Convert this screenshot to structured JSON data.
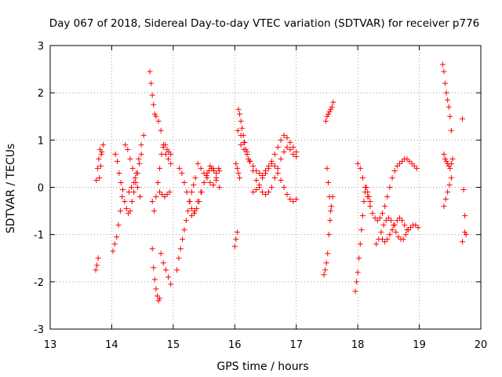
{
  "chart_data": {
    "type": "scatter",
    "title": "Day 067 of 2018, Sidereal Day-to-day VTEC variation (SDTVAR) for receiver p776",
    "xlabel": "GPS time / hours",
    "ylabel": "SDTVAR / TECUs",
    "xlim": [
      13,
      20
    ],
    "ylim": [
      -3,
      3
    ],
    "xticks": [
      "13",
      "14",
      "15",
      "16",
      "17",
      "18",
      "19",
      "20"
    ],
    "yticks": [
      "-3",
      "-2",
      "-1",
      "0",
      "1",
      "2",
      "3"
    ],
    "grid": true,
    "marker": "plus",
    "marker_color": "#ff0000",
    "series": [
      {
        "name": "SDTVAR",
        "x": [
          13.74,
          13.76,
          13.78,
          13.8,
          13.82,
          13.84,
          13.86,
          13.75,
          13.77,
          13.79,
          13.81,
          13.83,
          14.02,
          14.05,
          14.08,
          14.11,
          14.14,
          14.17,
          14.06,
          14.09,
          14.12,
          14.15,
          14.18,
          14.21,
          14.24,
          14.27,
          14.3,
          14.33,
          14.36,
          14.39,
          14.42,
          14.45,
          14.48,
          14.22,
          14.26,
          14.3,
          14.34,
          14.38,
          14.42,
          14.46,
          14.28,
          14.32,
          14.36,
          14.4,
          14.44,
          14.48,
          14.52,
          14.62,
          14.64,
          14.66,
          14.68,
          14.7,
          14.66,
          14.68,
          14.7,
          14.72,
          14.74,
          14.76,
          14.78,
          14.72,
          14.76,
          14.8,
          14.84,
          14.88,
          14.92,
          14.96,
          14.66,
          14.69,
          14.72,
          14.75,
          14.78,
          14.81,
          14.84,
          14.87,
          14.9,
          14.93,
          14.96,
          14.78,
          14.82,
          14.86,
          14.9,
          14.94,
          14.8,
          14.84,
          14.88,
          14.92,
          14.96,
          15.06,
          15.09,
          15.12,
          15.15,
          15.18,
          15.21,
          15.24,
          15.27,
          15.3,
          15.33,
          15.36,
          15.1,
          15.14,
          15.18,
          15.22,
          15.26,
          15.3,
          15.34,
          15.38,
          15.42,
          15.46,
          15.5,
          15.54,
          15.58,
          15.62,
          15.66,
          15.7,
          15.74,
          15.3,
          15.35,
          15.4,
          15.45,
          15.5,
          15.55,
          15.6,
          15.65,
          15.7,
          15.75,
          15.4,
          15.45,
          15.5,
          15.55,
          15.6,
          15.65,
          15.7,
          15.75,
          16.0,
          16.02,
          16.04,
          16.06,
          16.08,
          16.1,
          16.12,
          16.14,
          16.16,
          16.18,
          16.2,
          16.22,
          16.24,
          16.05,
          16.1,
          16.15,
          16.2,
          16.25,
          16.3,
          16.35,
          16.4,
          16.45,
          16.5,
          16.55,
          16.6,
          16.65,
          16.7,
          16.75,
          16.8,
          16.85,
          16.9,
          16.95,
          17.0,
          16.1,
          16.15,
          16.2,
          16.25,
          16.3,
          16.35,
          16.4,
          16.45,
          16.5,
          16.55,
          16.6,
          16.65,
          16.7,
          16.75,
          16.8,
          16.85,
          16.9,
          16.95,
          17.0,
          16.3,
          16.35,
          16.4,
          16.45,
          16.5,
          16.55,
          16.6,
          16.65,
          16.7,
          16.75,
          16.8,
          16.85,
          16.9,
          16.95,
          17.0,
          16.02,
          16.04,
          16.06,
          16.08,
          17.45,
          17.47,
          17.49,
          17.51,
          17.53,
          17.55,
          17.57,
          17.59,
          17.48,
          17.5,
          17.52,
          17.54,
          17.56,
          17.58,
          17.6,
          17.5,
          17.52,
          17.54,
          17.56,
          17.96,
          17.98,
          18.0,
          18.02,
          18.04,
          18.06,
          18.08,
          18.1,
          18.12,
          18.14,
          18.16,
          18.18,
          18.2,
          18.0,
          18.04,
          18.08,
          18.12,
          18.16,
          18.2,
          18.24,
          18.28,
          18.32,
          18.36,
          18.4,
          18.44,
          18.48,
          18.52,
          18.56,
          18.6,
          18.64,
          18.68,
          18.72,
          18.76,
          18.8,
          18.84,
          18.88,
          18.92,
          18.96,
          18.3,
          18.34,
          18.38,
          18.42,
          18.46,
          18.5,
          18.54,
          18.58,
          18.62,
          18.66,
          18.7,
          18.74,
          18.78,
          18.82,
          18.86,
          18.9,
          18.94,
          18.98,
          18.4,
          18.44,
          18.48,
          18.52,
          18.56,
          18.6,
          18.64,
          18.68,
          18.72,
          18.76,
          18.8,
          19.38,
          19.4,
          19.42,
          19.44,
          19.46,
          19.48,
          19.5,
          19.52,
          19.4,
          19.42,
          19.44,
          19.46,
          19.48,
          19.5,
          19.52,
          19.54,
          19.4,
          19.43,
          19.46,
          19.49,
          19.52,
          19.7,
          19.72,
          19.74,
          19.76,
          19.7,
          19.74
        ],
        "y": [
          -1.75,
          -1.65,
          -1.5,
          0.2,
          0.45,
          0.75,
          0.9,
          0.15,
          0.4,
          0.6,
          0.8,
          0.7,
          -1.35,
          -1.2,
          -1.05,
          -0.8,
          -0.5,
          -0.2,
          0.7,
          0.55,
          0.3,
          0.1,
          -0.05,
          -0.3,
          -0.45,
          -0.55,
          -0.5,
          -0.3,
          -0.1,
          0.1,
          0.3,
          0.5,
          0.7,
          0.9,
          0.8,
          0.6,
          0.4,
          0.2,
          0.0,
          -0.2,
          -0.1,
          0.0,
          0.1,
          0.3,
          0.6,
          0.9,
          1.1,
          2.45,
          2.2,
          1.95,
          1.75,
          1.55,
          -1.3,
          -1.7,
          -1.95,
          -2.15,
          -2.3,
          -2.4,
          -2.35,
          1.5,
          1.4,
          1.2,
          0.9,
          0.7,
          0.6,
          0.5,
          -0.3,
          -0.5,
          -0.2,
          0.1,
          0.4,
          0.7,
          0.85,
          0.9,
          0.8,
          0.75,
          0.7,
          -0.1,
          -0.15,
          -0.2,
          -0.15,
          -0.1,
          -1.4,
          -1.6,
          -1.75,
          -1.9,
          -2.05,
          -1.75,
          -1.5,
          -1.3,
          -1.1,
          -0.9,
          -0.7,
          -0.5,
          -0.3,
          -0.1,
          0.05,
          0.2,
          0.4,
          0.3,
          0.1,
          -0.1,
          -0.3,
          -0.45,
          -0.55,
          -0.45,
          -0.3,
          -0.1,
          0.1,
          0.25,
          0.35,
          0.4,
          0.35,
          0.3,
          0.4,
          -0.6,
          -0.5,
          -0.3,
          -0.1,
          0.1,
          0.3,
          0.45,
          0.4,
          0.2,
          0.0,
          0.5,
          0.4,
          0.3,
          0.2,
          0.1,
          0.05,
          0.15,
          0.35,
          -1.25,
          -1.1,
          -0.95,
          1.65,
          1.55,
          1.4,
          1.25,
          1.1,
          0.95,
          0.8,
          0.7,
          0.6,
          0.55,
          1.2,
          1.1,
          0.95,
          0.75,
          0.55,
          0.35,
          0.15,
          0.0,
          -0.1,
          -0.15,
          -0.1,
          0.0,
          0.2,
          0.4,
          0.6,
          0.75,
          0.85,
          0.8,
          0.7,
          0.65,
          0.9,
          0.8,
          0.7,
          0.55,
          0.45,
          0.35,
          0.3,
          0.25,
          0.3,
          0.4,
          0.55,
          0.7,
          0.85,
          1.0,
          1.1,
          1.05,
          0.95,
          0.85,
          0.75,
          -0.1,
          -0.05,
          0.05,
          0.2,
          0.35,
          0.45,
          0.5,
          0.45,
          0.3,
          0.15,
          0.0,
          -0.15,
          -0.25,
          -0.3,
          -0.25,
          0.5,
          0.4,
          0.3,
          0.2,
          -1.85,
          -1.75,
          -1.6,
          -1.4,
          -1.0,
          -0.7,
          -0.4,
          -0.2,
          1.4,
          1.5,
          1.55,
          1.6,
          1.65,
          1.7,
          1.8,
          0.4,
          0.1,
          -0.2,
          -0.5,
          -2.2,
          -2.0,
          -1.8,
          -1.5,
          -1.2,
          -0.9,
          -0.6,
          -0.3,
          -0.1,
          0.0,
          -0.1,
          -0.2,
          -0.3,
          0.5,
          0.4,
          0.2,
          0.0,
          -0.2,
          -0.4,
          -0.55,
          -0.65,
          -0.7,
          -0.65,
          -0.55,
          -0.4,
          -0.2,
          0.0,
          0.2,
          0.35,
          0.45,
          0.5,
          0.55,
          0.6,
          0.6,
          0.55,
          0.5,
          0.45,
          0.4,
          -1.2,
          -1.1,
          -0.95,
          -0.8,
          -0.7,
          -0.65,
          -0.7,
          -0.8,
          -0.95,
          -1.05,
          -1.1,
          -1.1,
          -1.0,
          -0.9,
          -0.85,
          -0.8,
          -0.8,
          -0.85,
          -1.1,
          -1.15,
          -1.1,
          -1.0,
          -0.9,
          -0.8,
          -0.7,
          -0.65,
          -0.7,
          -0.8,
          -0.9,
          2.6,
          2.45,
          2.2,
          2.0,
          1.85,
          1.7,
          1.5,
          1.2,
          0.7,
          0.6,
          0.55,
          0.5,
          0.45,
          0.4,
          0.5,
          0.6,
          -0.4,
          -0.25,
          -0.1,
          0.05,
          0.2,
          1.45,
          -0.05,
          -0.6,
          -1.0,
          -1.15,
          -0.95
        ]
      }
    ]
  }
}
